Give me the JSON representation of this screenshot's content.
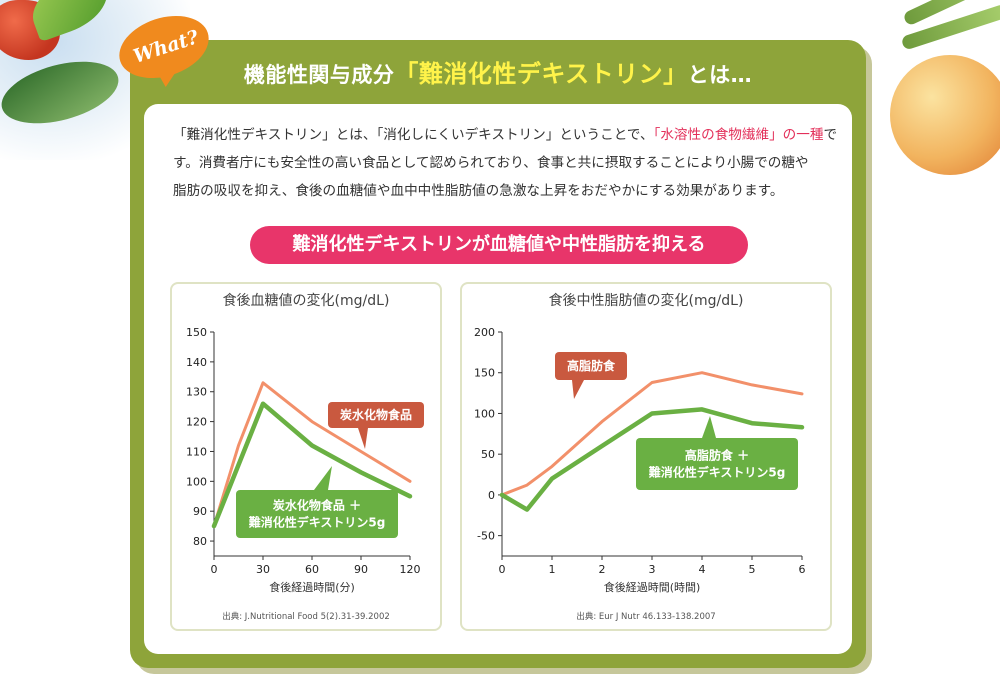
{
  "badge": {
    "text": "What?"
  },
  "heading": {
    "prefix": "機能性関与成分",
    "highlight": "「難消化性デキストリン」",
    "suffix": "とは…"
  },
  "description": {
    "line1_a": "「難消化性デキストリン」とは、「消化しにくいデキストリン」ということで、",
    "line1_red": "「水溶性の食物繊維」の一種",
    "line1_b": "で",
    "line2": "す。消費者庁にも安全性の高い食品として認められており、食事と共に摂取することにより小腸での糖や",
    "line3": "脂肪の吸収を抑え、食後の血糖値や血中中性脂肪値の急激な上昇をおだやかにする効果があります。"
  },
  "pill": {
    "text": "難消化性デキストリンが血糖値や中性脂肪を抑える"
  },
  "colors": {
    "orange": "#f2906a",
    "green": "#6ab043",
    "label_orange": "#c9593f",
    "label_green": "#6ab043"
  },
  "chart_data": [
    {
      "type": "line",
      "title": "食後血糖値の変化(mg/dL)",
      "xlabel": "食後経過時間(分)",
      "source": "出典: J.Nutritional Food 5(2).31-39.2002",
      "xlim": [
        0,
        120
      ],
      "ylim": [
        75,
        150
      ],
      "xticks": [
        0,
        30,
        60,
        90,
        120
      ],
      "yticks": [
        80,
        90,
        100,
        110,
        120,
        130,
        140,
        150
      ],
      "series": [
        {
          "name": "炭水化物食品",
          "color": "#f2906a",
          "x": [
            0,
            15,
            30,
            60,
            90,
            120
          ],
          "y": [
            85,
            112,
            133,
            120,
            110,
            100
          ]
        },
        {
          "name": "炭水化物食品 ＋ 難消化性デキストリン5g",
          "color": "#6ab043",
          "x": [
            0,
            30,
            60,
            90,
            120
          ],
          "y": [
            85,
            126,
            112,
            103,
            95
          ]
        }
      ],
      "labels": [
        {
          "lines": [
            "炭水化物食品"
          ],
          "color": "#c9593f"
        },
        {
          "lines": [
            "炭水化物食品 ＋",
            "難消化性デキストリン5g"
          ],
          "color": "#6ab043"
        }
      ]
    },
    {
      "type": "line",
      "title": "食後中性脂肪値の変化(mg/dL)",
      "xlabel": "食後経過時間(時間)",
      "source": "出典: Eur J Nutr 46.133-138.2007",
      "xlim": [
        0,
        6
      ],
      "ylim": [
        -75,
        200
      ],
      "xticks": [
        0,
        1,
        2,
        3,
        4,
        5,
        6
      ],
      "yticks": [
        -50,
        0,
        50,
        100,
        150,
        200
      ],
      "series": [
        {
          "name": "高脂肪食",
          "color": "#f2906a",
          "x": [
            0,
            0.5,
            1,
            2,
            3,
            4,
            5,
            6
          ],
          "y": [
            0,
            12,
            35,
            90,
            138,
            150,
            135,
            124
          ]
        },
        {
          "name": "高脂肪食 ＋ 難消化性デキストリン5g",
          "color": "#6ab043",
          "x": [
            0,
            0.5,
            1,
            2,
            3,
            4,
            5,
            6
          ],
          "y": [
            0,
            -18,
            20,
            60,
            100,
            105,
            88,
            83
          ]
        }
      ],
      "labels": [
        {
          "lines": [
            "高脂肪食"
          ],
          "color": "#c9593f"
        },
        {
          "lines": [
            "高脂肪食 ＋",
            "難消化性デキストリン5g"
          ],
          "color": "#6ab043"
        }
      ]
    }
  ]
}
